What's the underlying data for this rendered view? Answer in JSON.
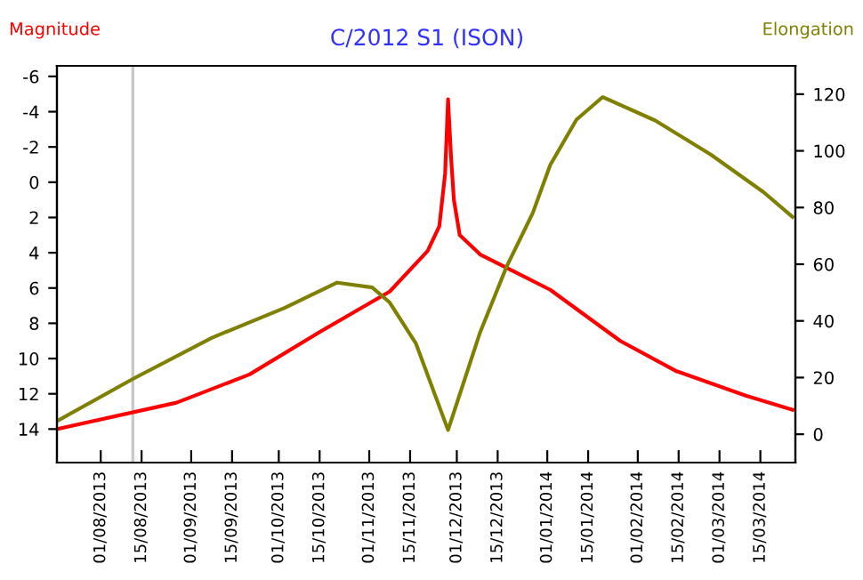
{
  "chart_data": {
    "type": "line",
    "title": "C/2012 S1 (ISON)",
    "ylabel": "Magnitude",
    "y2label": "Elongation",
    "xlim": [
      "2013-07-17",
      "2014-03-27"
    ],
    "xticks": [
      {
        "value": "2013-08-01",
        "label": "01/08/2013"
      },
      {
        "value": "2013-08-15",
        "label": "15/08/2013"
      },
      {
        "value": "2013-09-01",
        "label": "01/09/2013"
      },
      {
        "value": "2013-09-15",
        "label": "15/09/2013"
      },
      {
        "value": "2013-10-01",
        "label": "01/10/2013"
      },
      {
        "value": "2013-10-15",
        "label": "15/10/2013"
      },
      {
        "value": "2013-11-01",
        "label": "01/11/2013"
      },
      {
        "value": "2013-11-15",
        "label": "15/11/2013"
      },
      {
        "value": "2013-12-01",
        "label": "01/12/2013"
      },
      {
        "value": "2013-12-15",
        "label": "15/12/2013"
      },
      {
        "value": "2014-01-01",
        "label": "01/01/2014"
      },
      {
        "value": "2014-01-15",
        "label": "15/01/2014"
      },
      {
        "value": "2014-02-01",
        "label": "01/02/2014"
      },
      {
        "value": "2014-02-15",
        "label": "15/02/2014"
      },
      {
        "value": "2014-03-01",
        "label": "01/03/2014"
      },
      {
        "value": "2014-03-15",
        "label": "15/03/2014"
      }
    ],
    "ylim": [
      15.9,
      -6.6
    ],
    "yticks": [
      -6,
      -4,
      -2,
      0,
      2,
      4,
      6,
      8,
      10,
      12,
      14
    ],
    "y2lim": [
      -10,
      130
    ],
    "y2ticks": [
      0,
      20,
      40,
      60,
      80,
      100,
      120
    ],
    "grid": false,
    "legend": false,
    "marker": "none",
    "line_style": "solid",
    "ref_lines": [
      {
        "axis": "x",
        "value": "2013-08-12",
        "color": "#c8c8c8"
      }
    ],
    "series": [
      {
        "color": "#ff0000",
        "x": [
          "2013-07-17",
          "2013-08-27",
          "2013-09-21",
          "2013-10-15",
          "2013-11-08",
          "2013-11-21",
          "2013-11-25",
          "2013-11-27",
          "2013-11-28",
          "2013-11-29",
          "2013-11-30",
          "2013-12-02",
          "2013-12-09",
          "2013-12-21",
          "2014-01-02",
          "2014-01-26",
          "2014-02-14",
          "2014-03-10",
          "2014-03-26"
        ],
        "values": [
          14.0,
          12.5,
          10.9,
          8.5,
          6.2,
          3.9,
          2.5,
          -0.5,
          -4.7,
          -1.5,
          1.0,
          3.0,
          4.1,
          5.1,
          6.1,
          9.0,
          10.7,
          12.1,
          12.9
        ]
      },
      {
        "color": "#808000",
        "axis": "y2",
        "x": [
          "2013-07-17",
          "2013-08-12",
          "2013-09-08",
          "2013-10-03",
          "2013-10-21",
          "2013-11-02",
          "2013-11-08",
          "2013-11-17",
          "2013-11-28",
          "2013-12-09",
          "2013-12-18",
          "2013-12-27",
          "2014-01-02",
          "2014-01-11",
          "2014-01-20",
          "2014-02-07",
          "2014-02-26",
          "2014-03-16",
          "2014-03-26"
        ],
        "values": [
          4.6,
          19.5,
          34,
          44.6,
          53.5,
          51.8,
          46.5,
          32,
          1.5,
          36,
          59,
          78,
          95,
          111,
          119,
          110.7,
          98.7,
          85.5,
          76.7
        ]
      }
    ]
  }
}
